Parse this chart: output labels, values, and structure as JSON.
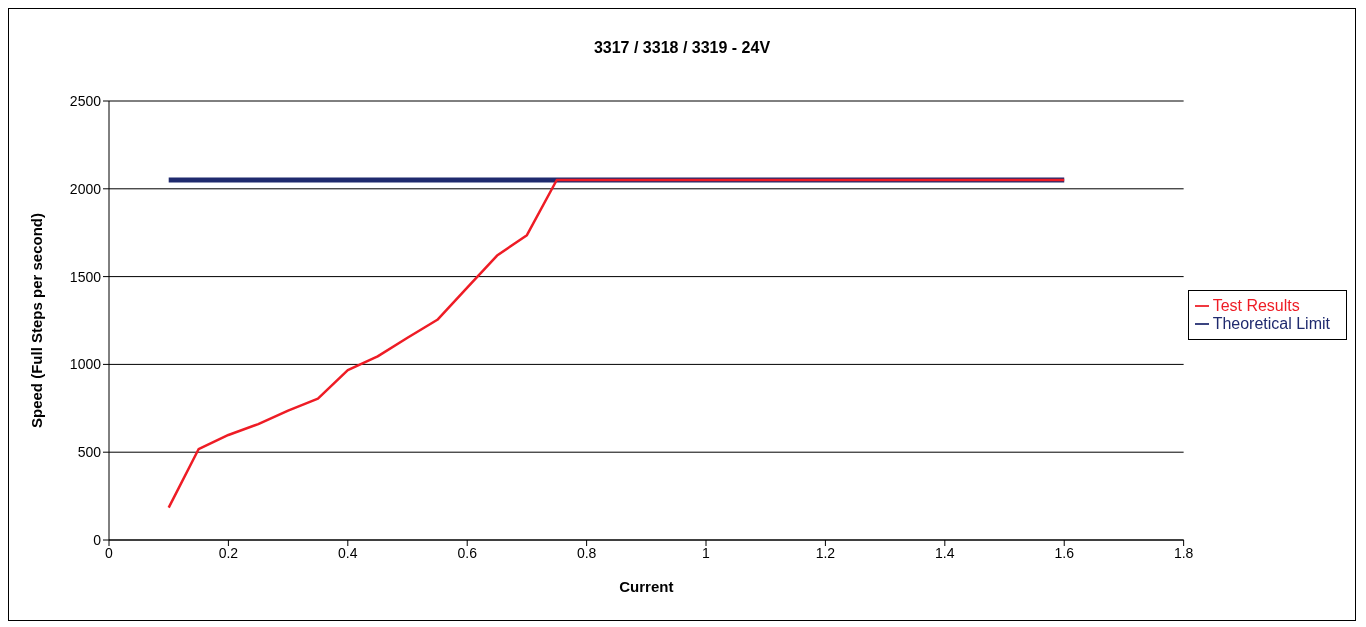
{
  "chart_data": {
    "type": "line",
    "title": "3317 / 3318 / 3319 - 24V",
    "xlabel": "Current",
    "ylabel": "Speed (Full Steps per second)",
    "x": [
      0.1,
      0.15,
      0.2,
      0.25,
      0.3,
      0.35,
      0.4,
      0.45,
      0.5,
      0.55,
      0.6,
      0.65,
      0.7,
      0.75,
      0.8,
      0.85,
      0.9,
      0.95,
      1,
      1.05,
      1.1,
      1.15,
      1.2,
      1.25,
      1.3,
      1.35,
      1.4,
      1.45,
      1.5,
      1.55,
      1.6
    ],
    "series": [
      {
        "name": "Theoretical Limit",
        "color": "#1f2a6e",
        "values": [
          2050,
          2050,
          2050,
          2050,
          2050,
          2050,
          2050,
          2050,
          2050,
          2050,
          2050,
          2050,
          2050,
          2050,
          2050,
          2050,
          2050,
          2050,
          2050,
          2050,
          2050,
          2050,
          2050,
          2050,
          2050,
          2050,
          2050,
          2050,
          2050,
          2050,
          2050
        ]
      },
      {
        "name": "Test Results",
        "color": "#ee1c25",
        "values": [
          184,
          517,
          598,
          660,
          737,
          805,
          967,
          1046,
          1152,
          1254,
          1437,
          1620,
          1736,
          2050,
          2050,
          2050,
          2050,
          2050,
          2050,
          2050,
          2050,
          2050,
          2050,
          2050,
          2050,
          2050,
          2050,
          2050,
          2050,
          2050,
          2050
        ]
      }
    ],
    "xlim": [
      0,
      1.8
    ],
    "xticks": [
      0,
      0.2,
      0.4,
      0.6,
      0.8,
      1,
      1.2,
      1.4,
      1.6,
      1.8
    ],
    "ylim": [
      0,
      2500
    ],
    "yticks": [
      0,
      500,
      1000,
      1500,
      2000,
      2500
    ],
    "grid": "y",
    "legend": "right",
    "marker": "none",
    "line_style": "solid"
  }
}
